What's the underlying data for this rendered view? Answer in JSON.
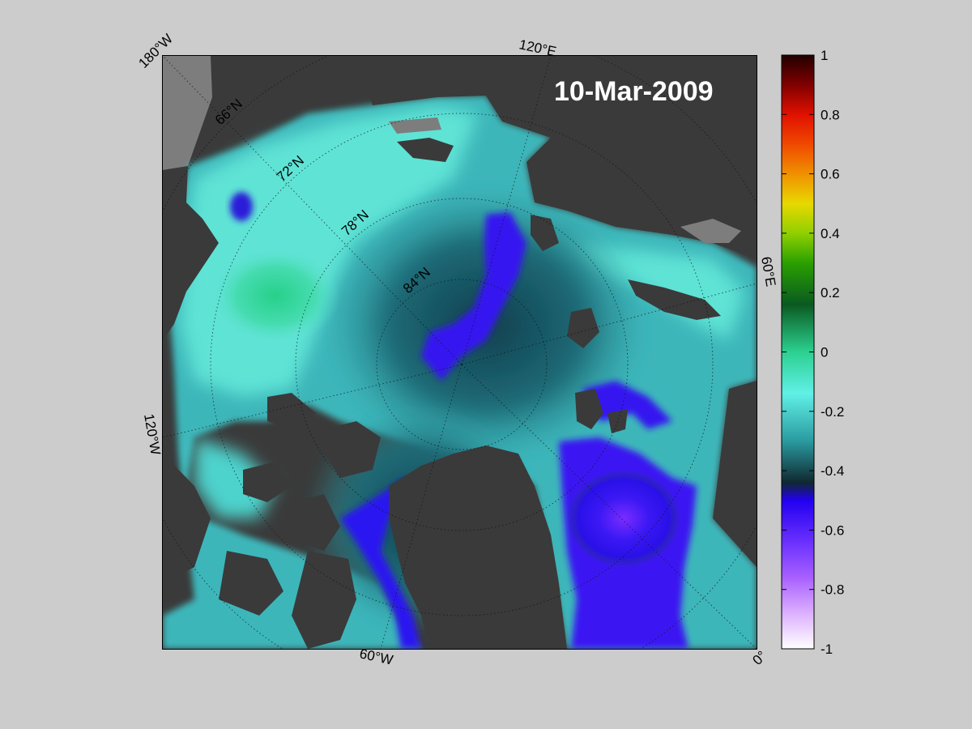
{
  "date": "10-Mar-2009",
  "colorbar": {
    "ticks": [
      "1",
      "0.8",
      "0.6",
      "0.4",
      "0.2",
      "0",
      "-0.2",
      "-0.4",
      "-0.6",
      "-0.8",
      "-1"
    ],
    "colors": [
      "#2a0000",
      "#8b0000",
      "#e52a00",
      "#f28c00",
      "#e8d800",
      "#66cc00",
      "#118a00",
      "#22cc88",
      "#5ce6d8",
      "#2a9fa0",
      "#123a48",
      "#2b00f5",
      "#7b33ff",
      "#b26dff",
      "#e2b8ff",
      "#ffffff"
    ]
  },
  "map": {
    "longitude_labels": [
      "180°W",
      "120°E",
      "60°E",
      "0°",
      "60°W",
      "120°W"
    ],
    "latitude_labels": [
      "66°N",
      "72°N",
      "78°N",
      "84°N"
    ],
    "colors": {
      "land": "#3a3a3a",
      "land_light": "#7d7d7d",
      "ocean_high": "#5fe3d5",
      "ocean_mid": "#2f9da3",
      "ocean_dark": "#175a66",
      "ocean_low": "#2c14f0",
      "ocean_lowest": "#7b33ff",
      "green": "#27d08a"
    }
  }
}
